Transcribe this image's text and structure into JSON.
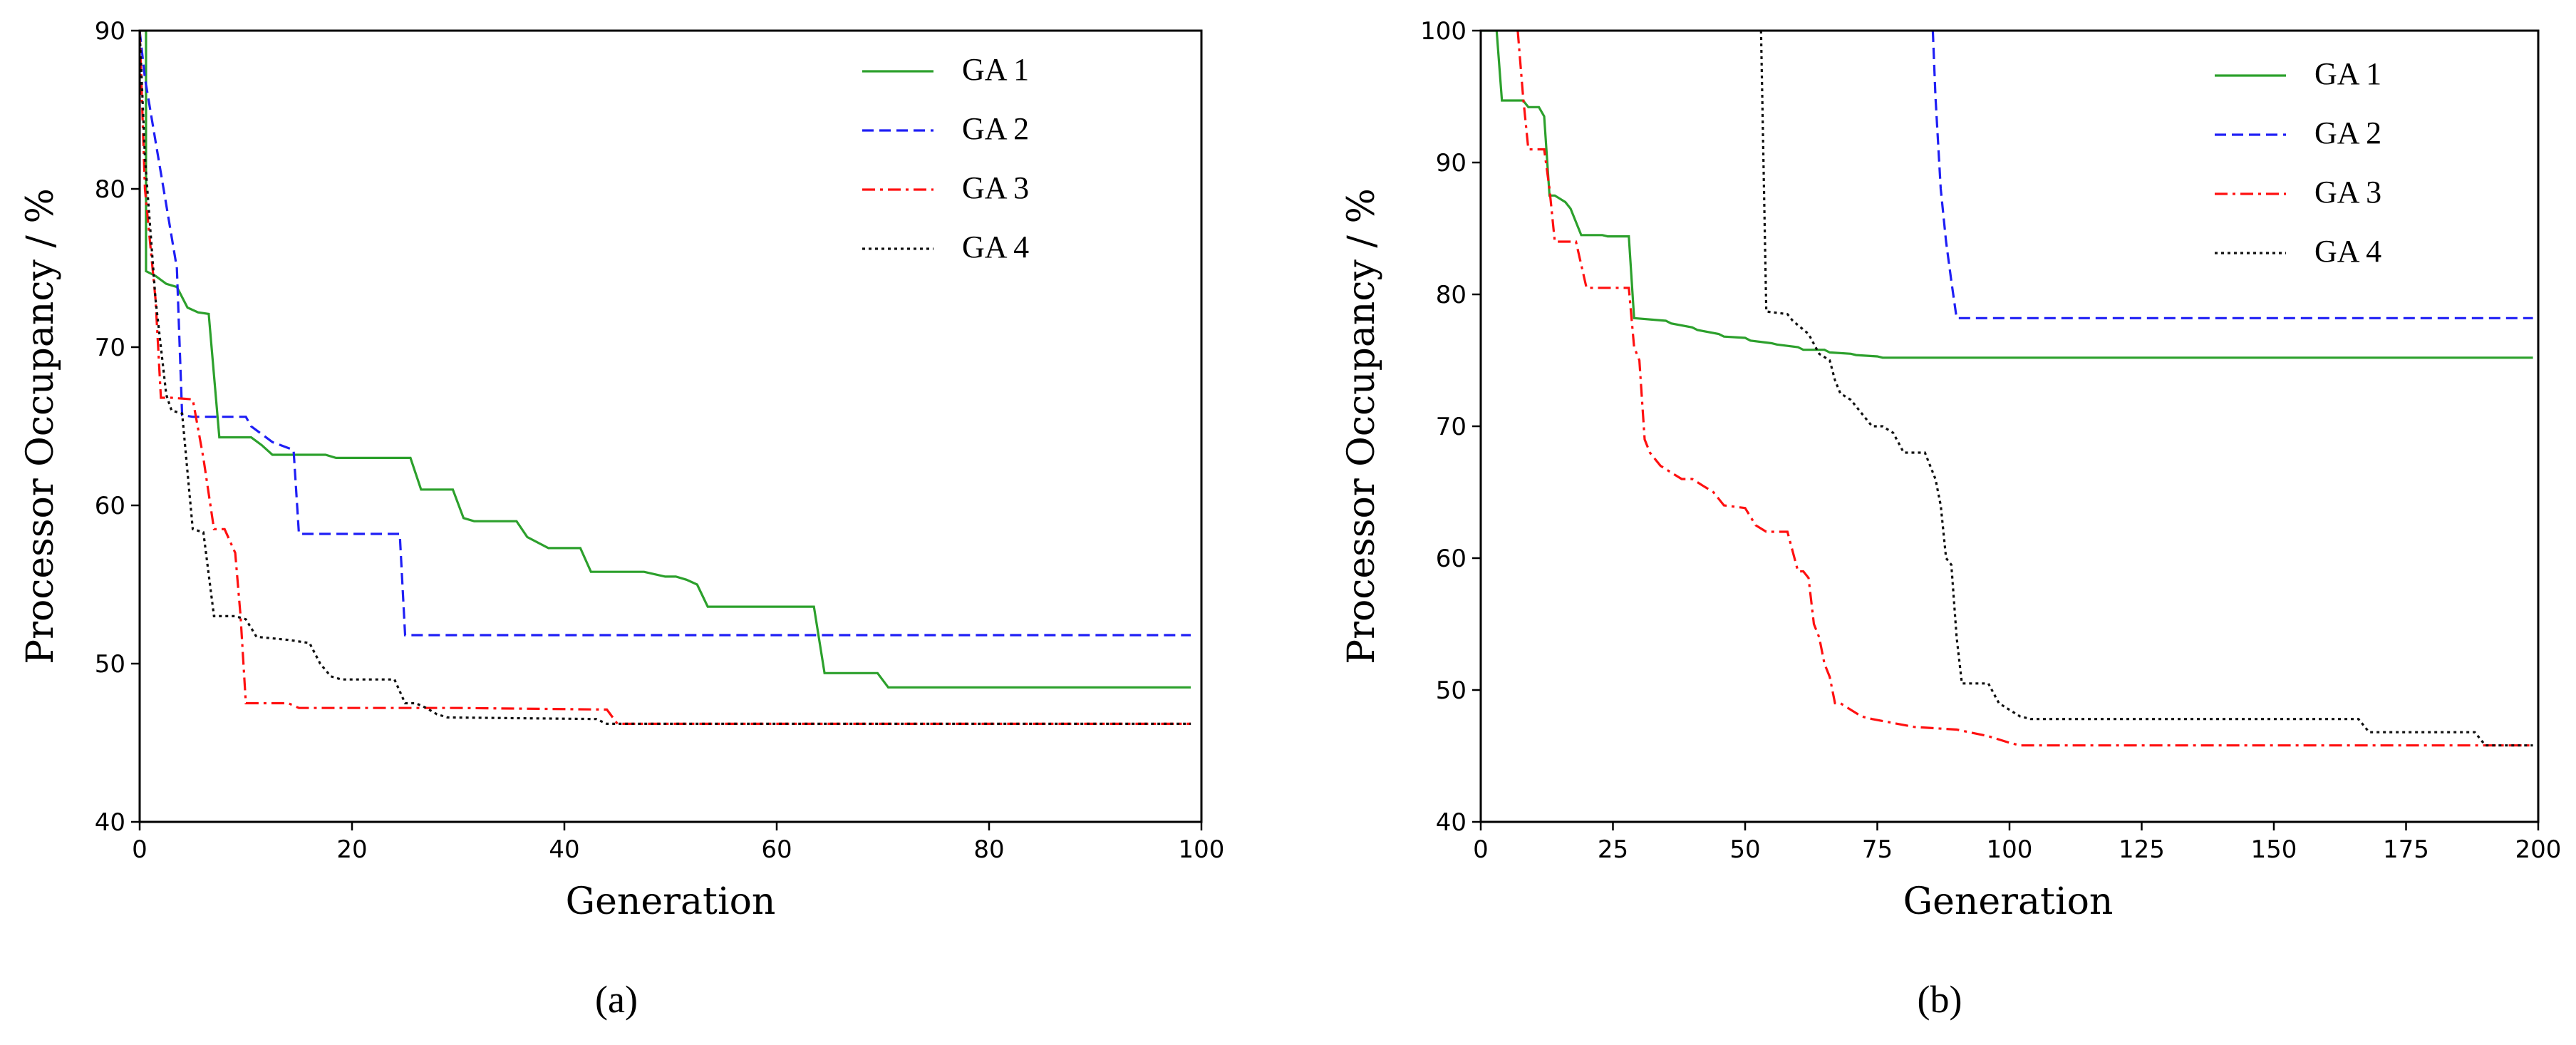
{
  "chart_data": [
    {
      "type": "line",
      "panel": "a",
      "caption": "(a)",
      "title": "",
      "xlabel": "Generation",
      "ylabel": "Processor Occupancy / %",
      "xlim": [
        0,
        100
      ],
      "ylim": [
        40,
        90
      ],
      "xticks": [
        "0",
        "20",
        "40",
        "60",
        "80",
        "100"
      ],
      "yticks": [
        "40",
        "50",
        "60",
        "70",
        "80",
        "90"
      ],
      "grid": false,
      "legend_position": "top-right",
      "series": [
        {
          "name": "GA 1",
          "color": "#2ca02c",
          "style": "solid",
          "x": [
            0,
            0.3,
            0.6,
            0.6,
            1.5,
            2.5,
            3.5,
            4.5,
            5.5,
            6.5,
            7.5,
            8.5,
            10.5,
            11.5,
            12.5,
            17.5,
            18.5,
            25.5,
            26.5,
            28.5,
            29.5,
            30.5,
            31.5,
            35.5,
            36.5,
            38.5,
            41.5,
            42.5,
            47.5,
            49.5,
            50.5,
            51.5,
            52.5,
            53.5,
            63.5,
            64.5,
            69.5,
            70.5,
            99
          ],
          "y": [
            90,
            90,
            90,
            74.8,
            74.5,
            74,
            73.8,
            72.5,
            72.2,
            72.1,
            64.3,
            64.3,
            64.3,
            63.8,
            63.2,
            63.2,
            63,
            63,
            61,
            61,
            61,
            59.2,
            59,
            59,
            58,
            57.3,
            57.3,
            55.8,
            55.8,
            55.5,
            55.5,
            55.3,
            55,
            53.6,
            53.6,
            49.4,
            49.4,
            48.5,
            48.5
          ]
        },
        {
          "name": "GA 2",
          "color": "#1f1ff5",
          "style": "dashed",
          "x": [
            0,
            0.5,
            1.5,
            2.5,
            3.5,
            4,
            5,
            10,
            10.5,
            12.5,
            14.5,
            15,
            24.5,
            25,
            99
          ],
          "y": [
            90,
            87,
            83,
            79,
            75,
            65.7,
            65.6,
            65.6,
            65,
            64,
            63.5,
            58.2,
            58.2,
            51.8,
            51.8
          ]
        },
        {
          "name": "GA 3",
          "color": "#ff1010",
          "style": "dashdot",
          "x": [
            0,
            0.5,
            1.5,
            2,
            3,
            5,
            6,
            7,
            8,
            9,
            9.5,
            10,
            14,
            15,
            30,
            44,
            45,
            99
          ],
          "y": [
            90,
            80,
            73,
            66.8,
            66.8,
            66.7,
            63,
            58.5,
            58.5,
            57,
            53,
            47.5,
            47.5,
            47.2,
            47.2,
            47.1,
            46.2,
            46.2
          ]
        },
        {
          "name": "GA 4",
          "color": "#111111",
          "style": "dotted",
          "x": [
            0,
            0.5,
            1.5,
            2.5,
            3,
            4,
            5,
            6,
            7,
            8,
            9,
            10,
            11,
            14,
            16,
            17,
            18,
            19,
            24,
            25,
            26,
            27,
            28,
            29,
            43,
            44,
            99
          ],
          "y": [
            90,
            82,
            73,
            67,
            66,
            65.8,
            58.5,
            58.3,
            53,
            53,
            53,
            52.8,
            51.7,
            51.5,
            51.3,
            50,
            49.2,
            49,
            49,
            47.5,
            47.5,
            47.2,
            46.8,
            46.6,
            46.5,
            46.2,
            46.2
          ]
        }
      ]
    },
    {
      "type": "line",
      "panel": "b",
      "caption": "(b)",
      "title": "",
      "xlabel": "Generation",
      "ylabel": "Processor Occupancy / %",
      "xlim": [
        0,
        200
      ],
      "ylim": [
        40,
        100
      ],
      "xticks": [
        "0",
        "25",
        "50",
        "75",
        "100",
        "125",
        "150",
        "175",
        "200"
      ],
      "yticks": [
        "40",
        "50",
        "60",
        "70",
        "80",
        "90",
        "100"
      ],
      "grid": false,
      "legend_position": "top-right",
      "series": [
        {
          "name": "GA 1",
          "color": "#2ca02c",
          "style": "solid",
          "x": [
            0,
            3,
            4,
            8,
            9,
            11,
            12,
            13,
            14,
            16,
            17,
            19,
            20,
            23,
            24,
            28,
            29,
            35,
            36,
            40,
            41,
            45,
            46,
            50,
            51,
            55,
            56,
            60,
            61,
            65,
            66,
            70,
            71,
            75,
            76,
            199
          ],
          "y": [
            100,
            100,
            94.7,
            94.7,
            94.2,
            94.2,
            93.5,
            87.5,
            87.5,
            87,
            86.5,
            84.5,
            84.5,
            84.5,
            84.4,
            84.4,
            78.2,
            78,
            77.8,
            77.5,
            77.3,
            77,
            76.8,
            76.7,
            76.5,
            76.3,
            76.2,
            76,
            75.8,
            75.8,
            75.6,
            75.5,
            75.4,
            75.3,
            75.2,
            75.2
          ]
        },
        {
          "name": "GA 2",
          "color": "#1f1ff5",
          "style": "dashed",
          "x": [
            85.5,
            86,
            87,
            88,
            89,
            90,
            199
          ],
          "y": [
            100,
            95,
            88,
            84,
            81,
            78.2,
            78.2
          ]
        },
        {
          "name": "GA 3",
          "color": "#ff1010",
          "style": "dashdot",
          "x": [
            7,
            8,
            9,
            12,
            13,
            14,
            18,
            20,
            21,
            28,
            29,
            30,
            31,
            32,
            34,
            36,
            38,
            40,
            42,
            44,
            46,
            50,
            52,
            54,
            58,
            60,
            61,
            62,
            63,
            64,
            65,
            66,
            67,
            68,
            70,
            72,
            74,
            78,
            82,
            90,
            96,
            100,
            102,
            199
          ],
          "y": [
            100,
            95,
            91,
            91,
            88,
            84,
            84,
            80.5,
            80.5,
            80.5,
            76,
            75,
            69,
            68,
            67,
            66.5,
            66,
            66,
            65.5,
            65,
            64,
            63.8,
            62.5,
            62,
            62,
            59,
            59,
            58.5,
            55,
            54,
            52,
            51,
            49,
            49,
            48.5,
            48,
            47.8,
            47.5,
            47.2,
            47,
            46.5,
            46,
            45.8,
            45.8
          ]
        },
        {
          "name": "GA 4",
          "color": "#111111",
          "style": "dotted",
          "x": [
            53,
            54,
            58,
            59,
            62,
            64,
            66,
            67,
            68,
            70,
            72,
            74,
            76,
            78,
            80,
            82,
            84,
            86,
            87,
            88,
            89,
            90,
            91,
            92,
            93,
            96,
            98,
            100,
            102,
            104,
            108,
            130,
            166,
            168,
            188,
            190,
            199
          ],
          "y": [
            100,
            78.7,
            78.5,
            78,
            77,
            75.5,
            75,
            73.5,
            72.5,
            72,
            71,
            70,
            70,
            69.5,
            68,
            68,
            68,
            66,
            64,
            60,
            59.5,
            54,
            50.5,
            50.5,
            50.5,
            50.5,
            49,
            48.5,
            48,
            47.8,
            47.8,
            47.8,
            47.8,
            46.8,
            46.8,
            45.8,
            45.8
          ]
        }
      ]
    }
  ]
}
